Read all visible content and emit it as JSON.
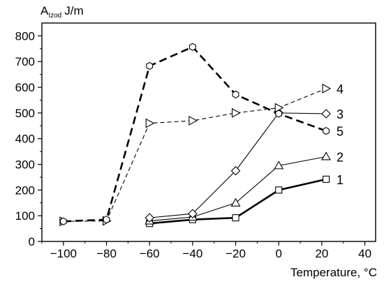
{
  "chart_data": {
    "type": "line",
    "xlabel": "Temperature, °C",
    "ylabel": {
      "main": "A",
      "sub": "Izod",
      "unit": "J/m"
    },
    "xlim": [
      -110,
      45
    ],
    "ylim": [
      0,
      850
    ],
    "xticks": [
      -100,
      -80,
      -60,
      -40,
      -20,
      0,
      20,
      40
    ],
    "yticks": [
      0,
      100,
      200,
      300,
      400,
      500,
      600,
      700,
      800
    ],
    "x_tick_labels": [
      "−100",
      "−80",
      "−60",
      "−40",
      "−20",
      "0",
      "20",
      "40"
    ],
    "y_tick_labels": [
      "0",
      "100",
      "200",
      "300",
      "400",
      "500",
      "600",
      "700",
      "800"
    ],
    "grid": false,
    "legend": "labels at right end of each series",
    "series": [
      {
        "name": "1",
        "marker": "square",
        "style": "solid",
        "weight": "thick",
        "x": [
          -60,
          -40,
          -20,
          0,
          22
        ],
        "y": [
          70,
          85,
          92,
          200,
          242
        ]
      },
      {
        "name": "2",
        "marker": "triangle",
        "style": "solid",
        "weight": "thin",
        "x": [
          -60,
          -40,
          -20,
          0,
          22
        ],
        "y": [
          80,
          95,
          150,
          295,
          330
        ]
      },
      {
        "name": "3",
        "marker": "diamond",
        "style": "solid",
        "weight": "thin",
        "x": [
          -60,
          -40,
          -20,
          0,
          22
        ],
        "y": [
          92,
          108,
          275,
          500,
          497
        ]
      },
      {
        "name": "4",
        "marker": "tri-right",
        "style": "dashed",
        "weight": "thin",
        "x": [
          -100,
          -80,
          -60,
          -40,
          -20,
          0,
          22
        ],
        "y": [
          78,
          80,
          460,
          470,
          500,
          520,
          595
        ]
      },
      {
        "name": "5",
        "marker": "hexagon",
        "style": "dashed",
        "weight": "thick",
        "x": [
          -100,
          -80,
          -60,
          -40,
          -20,
          0,
          22
        ],
        "y": [
          78,
          85,
          683,
          757,
          572,
          497,
          430
        ]
      }
    ]
  }
}
